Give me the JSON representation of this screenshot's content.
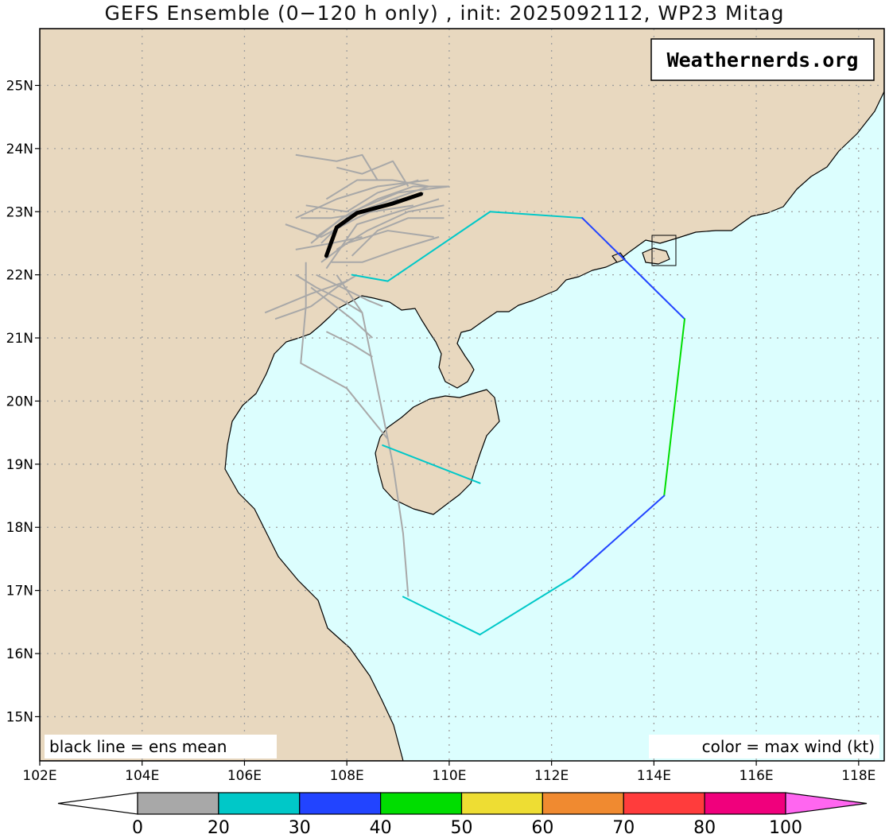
{
  "title": "GEFS Ensemble (0−120 h only) , init: 2025092112, WP23 Mitag",
  "credit": "Weathernerds.org",
  "notes": {
    "left": "black line = ens mean",
    "right": "color = max wind (kt)"
  },
  "colors": {
    "land": "#e8d8bf",
    "ocean": "#dcfefe",
    "gridline": "#9e9e9e",
    "coast": "#000000",
    "ens_mean": "#000000",
    "member": "#a8a8a8"
  },
  "map": {
    "lon_range": [
      102,
      118.5
    ],
    "lat_range": [
      14.3,
      25.9
    ],
    "lon_ticks": [
      {
        "v": 102,
        "label": "102E"
      },
      {
        "v": 104,
        "label": "104E"
      },
      {
        "v": 106,
        "label": "106E"
      },
      {
        "v": 108,
        "label": "108E"
      },
      {
        "v": 110,
        "label": "110E"
      },
      {
        "v": 112,
        "label": "112E"
      },
      {
        "v": 114,
        "label": "114E"
      },
      {
        "v": 116,
        "label": "116E"
      },
      {
        "v": 118,
        "label": "118E"
      }
    ],
    "lat_ticks": [
      {
        "v": 15,
        "label": "15N"
      },
      {
        "v": 16,
        "label": "16N"
      },
      {
        "v": 17,
        "label": "17N"
      },
      {
        "v": 18,
        "label": "18N"
      },
      {
        "v": 19,
        "label": "19N"
      },
      {
        "v": 20,
        "label": "20N"
      },
      {
        "v": 21,
        "label": "21N"
      },
      {
        "v": 22,
        "label": "22N"
      },
      {
        "v": 23,
        "label": "23N"
      },
      {
        "v": 24,
        "label": "24N"
      },
      {
        "v": 25,
        "label": "25N"
      }
    ]
  },
  "ensemble_mean_track": [
    [
      107.6,
      22.3
    ],
    [
      107.8,
      22.75
    ],
    [
      108.2,
      22.98
    ],
    [
      108.9,
      23.13
    ],
    [
      109.45,
      23.28
    ]
  ],
  "wind_envelope": [
    {
      "from": [
        108.1,
        22.0
      ],
      "to": [
        108.8,
        21.9
      ],
      "wind_kt": 25
    },
    {
      "from": [
        108.8,
        21.9
      ],
      "to": [
        110.8,
        23.0
      ],
      "wind_kt": 25
    },
    {
      "from": [
        110.8,
        23.0
      ],
      "to": [
        112.6,
        22.9
      ],
      "wind_kt": 25
    },
    {
      "from": [
        112.6,
        22.9
      ],
      "to": [
        114.6,
        21.3
      ],
      "wind_kt": 35
    },
    {
      "from": [
        114.6,
        21.3
      ],
      "to": [
        114.2,
        18.5
      ],
      "wind_kt": 45
    },
    {
      "from": [
        114.2,
        18.5
      ],
      "to": [
        112.4,
        17.2
      ],
      "wind_kt": 35
    },
    {
      "from": [
        112.4,
        17.2
      ],
      "to": [
        110.6,
        16.3
      ],
      "wind_kt": 25
    },
    {
      "from": [
        110.6,
        16.3
      ],
      "to": [
        109.1,
        16.9
      ],
      "wind_kt": 25
    },
    {
      "from": [
        108.7,
        19.3
      ],
      "to": [
        110.6,
        18.7
      ],
      "wind_kt": 25
    }
  ],
  "member_tracks": [
    [
      [
        107.5,
        22.5
      ],
      [
        108.0,
        22.9
      ],
      [
        108.7,
        23.1
      ],
      [
        109.5,
        23.3
      ]
    ],
    [
      [
        107.3,
        22.5
      ],
      [
        107.9,
        22.9
      ],
      [
        108.9,
        23.2
      ],
      [
        109.6,
        23.4
      ]
    ],
    [
      [
        107.6,
        22.1
      ],
      [
        108.2,
        22.8
      ],
      [
        109.0,
        23.0
      ],
      [
        109.8,
        23.2
      ]
    ],
    [
      [
        107.0,
        22.9
      ],
      [
        107.8,
        23.2
      ],
      [
        108.6,
        23.4
      ],
      [
        109.6,
        23.5
      ]
    ],
    [
      [
        107.4,
        22.6
      ],
      [
        108.1,
        23.0
      ],
      [
        109.0,
        23.3
      ],
      [
        110.0,
        23.4
      ]
    ],
    [
      [
        107.8,
        22.4
      ],
      [
        108.4,
        22.7
      ],
      [
        109.2,
        23.0
      ],
      [
        109.9,
        23.1
      ]
    ],
    [
      [
        107.2,
        23.1
      ],
      [
        108.0,
        23.0
      ],
      [
        108.6,
        23.3
      ],
      [
        109.4,
        23.5
      ]
    ],
    [
      [
        108.1,
        22.3
      ],
      [
        108.6,
        22.7
      ],
      [
        109.2,
        22.9
      ],
      [
        109.9,
        22.9
      ]
    ],
    [
      [
        107.5,
        22.2
      ],
      [
        108.0,
        22.5
      ],
      [
        108.8,
        22.7
      ],
      [
        109.7,
        22.6
      ]
    ],
    [
      [
        107.1,
        22.9
      ],
      [
        107.7,
        22.9
      ],
      [
        108.5,
        23.0
      ],
      [
        109.3,
        23.1
      ]
    ],
    [
      [
        107.9,
        22.9
      ],
      [
        108.6,
        23.2
      ],
      [
        109.3,
        23.4
      ],
      [
        110.0,
        23.4
      ]
    ],
    [
      [
        107.7,
        22.2
      ],
      [
        108.3,
        22.2
      ],
      [
        109.0,
        22.4
      ],
      [
        109.8,
        22.6
      ]
    ],
    [
      [
        107.0,
        22.4
      ],
      [
        107.7,
        22.5
      ],
      [
        108.3,
        22.6
      ]
    ],
    [
      [
        106.8,
        22.8
      ],
      [
        107.5,
        22.6
      ],
      [
        108.2,
        22.9
      ],
      [
        109.0,
        23.2
      ]
    ],
    [
      [
        107.4,
        22.0
      ],
      [
        107.9,
        21.8
      ],
      [
        108.4,
        21.6
      ],
      [
        108.7,
        21.5
      ]
    ],
    [
      [
        106.6,
        21.3
      ],
      [
        107.3,
        21.5
      ],
      [
        107.8,
        21.8
      ],
      [
        108.2,
        22.0
      ]
    ],
    [
      [
        107.0,
        23.9
      ],
      [
        107.8,
        23.8
      ],
      [
        108.3,
        23.9
      ],
      [
        108.6,
        23.5
      ]
    ],
    [
      [
        107.8,
        23.7
      ],
      [
        108.3,
        23.6
      ],
      [
        108.9,
        23.8
      ],
      [
        109.2,
        23.4
      ]
    ],
    [
      [
        107.6,
        23.2
      ],
      [
        108.2,
        23.5
      ],
      [
        108.9,
        23.5
      ],
      [
        109.6,
        23.4
      ]
    ],
    [
      [
        107.0,
        22.0
      ],
      [
        107.4,
        21.8
      ],
      [
        107.9,
        21.6
      ],
      [
        108.3,
        21.4
      ]
    ],
    [
      [
        107.2,
        22.2
      ],
      [
        107.2,
        21.5
      ],
      [
        107.1,
        20.6
      ],
      [
        108.0,
        20.2
      ],
      [
        108.8,
        19.4
      ]
    ],
    [
      [
        107.6,
        21.1
      ],
      [
        108.1,
        20.9
      ],
      [
        108.5,
        20.7
      ]
    ],
    [
      [
        107.8,
        22.0
      ],
      [
        108.3,
        21.4
      ],
      [
        108.6,
        20.2
      ],
      [
        108.9,
        19.0
      ],
      [
        109.1,
        17.9
      ],
      [
        109.2,
        16.9
      ]
    ],
    [
      [
        107.3,
        21.8
      ],
      [
        108.1,
        21.3
      ],
      [
        108.5,
        21.0
      ]
    ],
    [
      [
        106.4,
        21.4
      ],
      [
        107.3,
        21.7
      ],
      [
        108.0,
        21.9
      ]
    ]
  ],
  "colorbar": {
    "labels": [
      "0",
      "20",
      "30",
      "40",
      "50",
      "60",
      "70",
      "80",
      "100"
    ],
    "colors": [
      "#a8a8a8",
      "#00c8c8",
      "#2244ff",
      "#00dd00",
      "#eedd33",
      "#f08a30",
      "#ff3c3c",
      "#f0007c"
    ],
    "under_color": "#ffffff",
    "over_color": "#ff66f0"
  }
}
